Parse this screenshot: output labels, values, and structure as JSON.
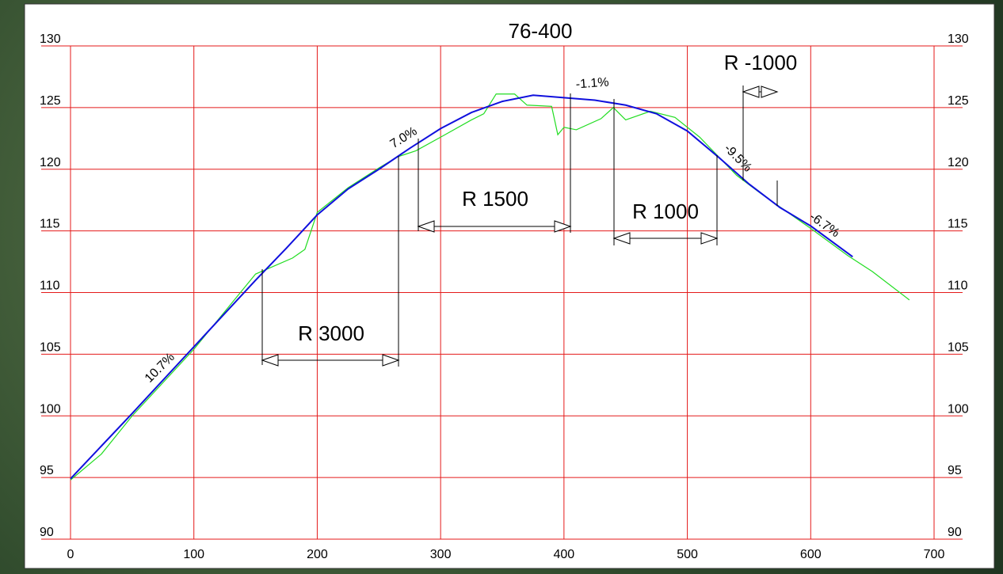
{
  "chart_data": {
    "type": "line",
    "title": "76-400",
    "xlim": [
      0,
      700
    ],
    "xticks": [
      0,
      100,
      200,
      300,
      400,
      500,
      600,
      700
    ],
    "ylim": [
      90,
      130
    ],
    "yticks": [
      90,
      95,
      100,
      105,
      110,
      115,
      120,
      125,
      130
    ],
    "grid": true,
    "grid_color": "#e41a1a",
    "series": [
      {
        "color": "#22dd22",
        "x": [
          0,
          25,
          50,
          100,
          150,
          180,
          190,
          200,
          225,
          250,
          265,
          280,
          300,
          325,
          335,
          345,
          360,
          370,
          390,
          395,
          400,
          410,
          430,
          440,
          450,
          470,
          490,
          510,
          540,
          560,
          600,
          630,
          650,
          680
        ],
        "values": [
          94.8,
          96.9,
          100,
          105.4,
          111.5,
          112.8,
          113.5,
          116.5,
          118.5,
          120.1,
          121,
          121.5,
          122.6,
          124,
          124.5,
          126.1,
          126.1,
          125.2,
          125.1,
          122.8,
          123.4,
          123.2,
          124.1,
          125,
          124,
          124.7,
          124.2,
          122.6,
          119.5,
          118,
          115.2,
          113,
          111.7,
          109.4
        ]
      },
      {
        "color": "#1010dd",
        "x": [
          0,
          50,
          100,
          150,
          175,
          200,
          225,
          250,
          275,
          300,
          325,
          350,
          375,
          400,
          425,
          450,
          475,
          500,
          525,
          550,
          575,
          600,
          634
        ],
        "values": [
          94.9,
          100.2,
          105.6,
          111.0,
          113.6,
          116.3,
          118.4,
          120.0,
          121.7,
          123.3,
          124.6,
          125.5,
          126.0,
          125.8,
          125.6,
          125.2,
          124.5,
          123.1,
          121.0,
          118.8,
          116.9,
          115.4,
          112.9
        ]
      }
    ],
    "annotations": [
      "10.7%",
      "7.0%",
      "-1.1%",
      "-9.5%",
      "-6.7%",
      "R 3000",
      "R 1500",
      "R 1000",
      "R -1000"
    ]
  }
}
